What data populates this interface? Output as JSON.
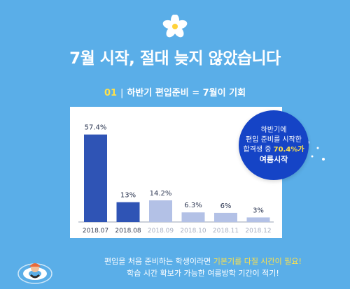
{
  "header": {
    "title": "7월 시작, 절대 늦지 않았습니다",
    "subtitle_num": "01",
    "subtitle_sep": "|",
    "subtitle_text": "하반기 편입준비 = 7월이 기회"
  },
  "callout": {
    "line1": "하반기에",
    "line2": "편입 준비를 시작한",
    "line3_pre": "합격생 중",
    "line3_hl": "70.4%가",
    "line4": "여름시작"
  },
  "footer": {
    "line1_pre": "편입을 처음 준비하는 학생이라면",
    "line1_hl": "기본기를 다질 시간이 필요!",
    "line2": "학습 시간 확보가 가능한 여름방학 기간이 적기!"
  },
  "colors": {
    "background": "#5aaee8",
    "bar_dark": "#2f54b5",
    "bar_light": "#b3c1e6",
    "callout": "#1544c6",
    "highlight": "#ffe14a"
  },
  "chart_data": {
    "type": "bar",
    "categories": [
      "2018.07",
      "2018.08",
      "2018.09",
      "2018.10",
      "2018.11",
      "2018.12"
    ],
    "values": [
      57.4,
      13,
      14.2,
      6.3,
      6,
      3
    ],
    "value_labels": [
      "57.4%",
      "13%",
      "14.2%",
      "6.3%",
      "6%",
      "3%"
    ],
    "highlighted": [
      true,
      true,
      false,
      false,
      false,
      false
    ],
    "ylim": [
      0,
      60
    ]
  }
}
